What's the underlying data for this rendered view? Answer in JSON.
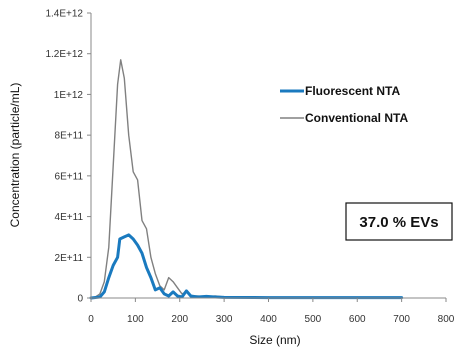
{
  "chart_data": {
    "type": "line",
    "xlabel": "Size (nm)",
    "ylabel": "Concentration (particle/mL)",
    "xlim": [
      0,
      800
    ],
    "ylim": [
      0,
      1400000000000.0
    ],
    "x_ticks": [
      "0",
      "100",
      "200",
      "300",
      "400",
      "500",
      "600",
      "700",
      "800"
    ],
    "y_ticks": [
      "0",
      "2E+11",
      "4E+11",
      "6E+11",
      "8E+11",
      "1E+12",
      "1.2E+12",
      "1.4E+12"
    ],
    "legend_position": "right",
    "annotation": "37.0 % EVs",
    "series": [
      {
        "name": "Conventional NTA",
        "color": "#808080",
        "points": [
          [
            0,
            0
          ],
          [
            10,
            5000000000.0
          ],
          [
            20,
            20000000000.0
          ],
          [
            30,
            80000000000.0
          ],
          [
            40,
            250000000000.0
          ],
          [
            50,
            650000000000.0
          ],
          [
            60,
            1050000000000.0
          ],
          [
            67,
            1170000000000.0
          ],
          [
            75,
            1080000000000.0
          ],
          [
            85,
            800000000000.0
          ],
          [
            95,
            620000000000.0
          ],
          [
            105,
            580000000000.0
          ],
          [
            115,
            380000000000.0
          ],
          [
            125,
            340000000000.0
          ],
          [
            135,
            200000000000.0
          ],
          [
            145,
            120000000000.0
          ],
          [
            155,
            60000000000.0
          ],
          [
            165,
            40000000000.0
          ],
          [
            175,
            100000000000.0
          ],
          [
            185,
            80000000000.0
          ],
          [
            195,
            50000000000.0
          ],
          [
            205,
            20000000000.0
          ],
          [
            215,
            30000000000.0
          ],
          [
            225,
            10000000000.0
          ],
          [
            240,
            10000000000.0
          ],
          [
            260,
            5000000000.0
          ],
          [
            280,
            10000000000.0
          ],
          [
            300,
            5000000000.0
          ],
          [
            350,
            3000000000.0
          ],
          [
            400,
            2000000000.0
          ],
          [
            500,
            2000000000.0
          ],
          [
            600,
            2000000000.0
          ],
          [
            700,
            2000000000.0
          ]
        ]
      },
      {
        "name": "Fluorescent NTA",
        "color": "#1a7abf",
        "points": [
          [
            0,
            0
          ],
          [
            20,
            5000000000.0
          ],
          [
            30,
            30000000000.0
          ],
          [
            40,
            100000000000.0
          ],
          [
            50,
            160000000000.0
          ],
          [
            60,
            200000000000.0
          ],
          [
            65,
            290000000000.0
          ],
          [
            75,
            300000000000.0
          ],
          [
            85,
            310000000000.0
          ],
          [
            95,
            290000000000.0
          ],
          [
            105,
            260000000000.0
          ],
          [
            115,
            220000000000.0
          ],
          [
            125,
            150000000000.0
          ],
          [
            135,
            100000000000.0
          ],
          [
            145,
            40000000000.0
          ],
          [
            155,
            50000000000.0
          ],
          [
            165,
            20000000000.0
          ],
          [
            175,
            10000000000.0
          ],
          [
            185,
            30000000000.0
          ],
          [
            195,
            10000000000.0
          ],
          [
            205,
            5000000000.0
          ],
          [
            215,
            35000000000.0
          ],
          [
            225,
            10000000000.0
          ],
          [
            240,
            5000000000.0
          ],
          [
            260,
            8000000000.0
          ],
          [
            280,
            5000000000.0
          ],
          [
            300,
            3000000000.0
          ],
          [
            400,
            2000000000.0
          ],
          [
            500,
            2000000000.0
          ],
          [
            600,
            2000000000.0
          ],
          [
            700,
            2000000000.0
          ]
        ]
      }
    ]
  }
}
